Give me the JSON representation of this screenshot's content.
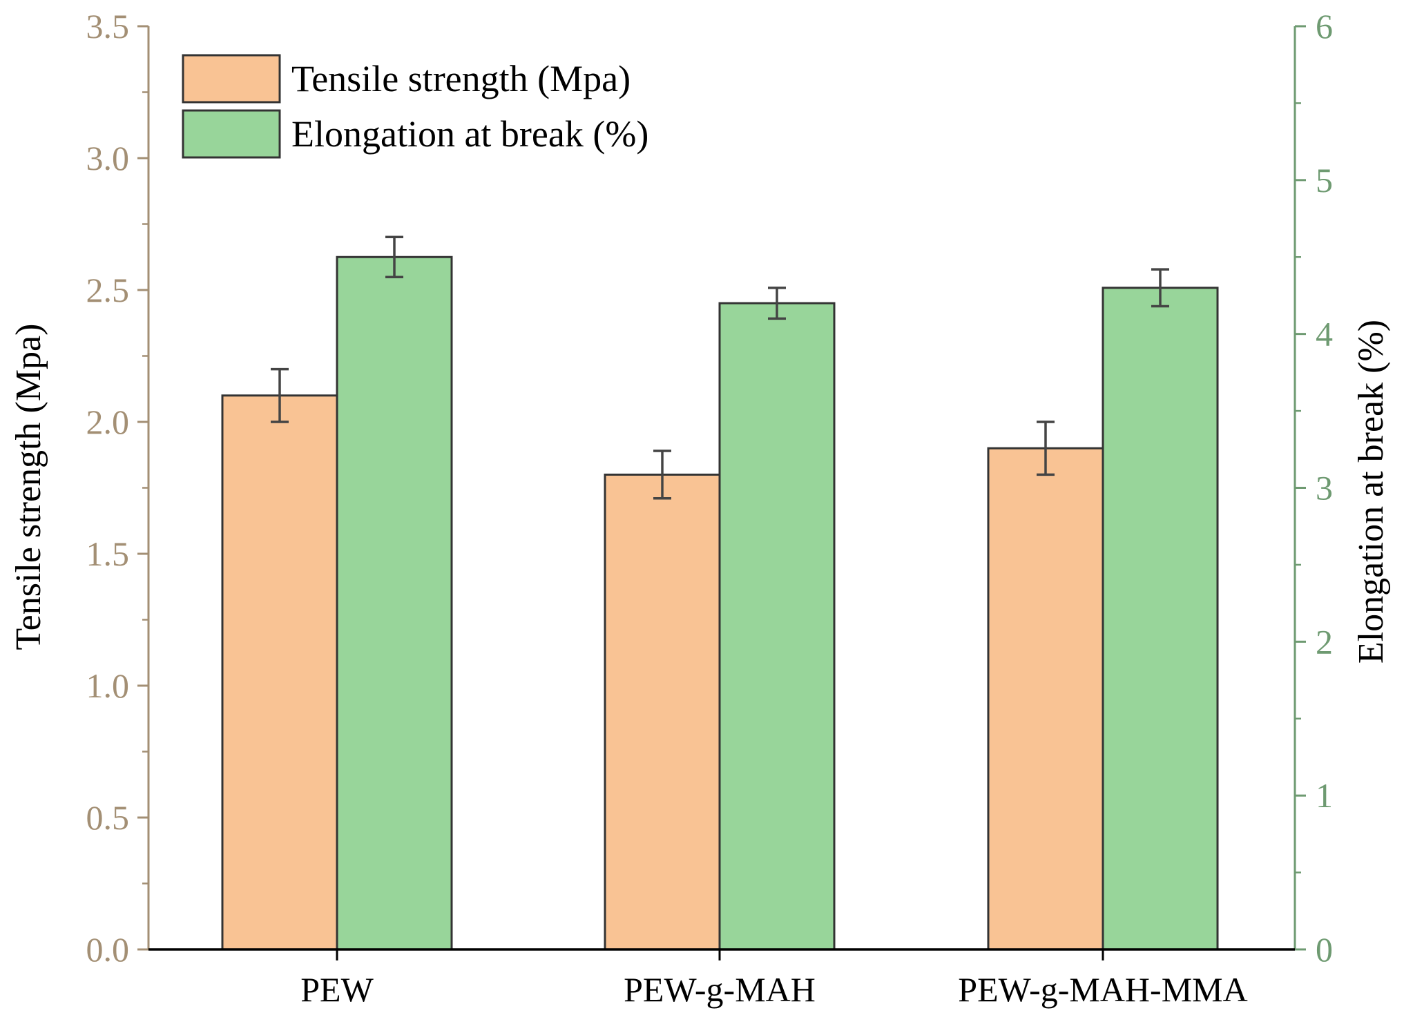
{
  "chart_data": {
    "type": "bar",
    "categories": [
      "PEW",
      "PEW-g-MAH",
      "PEW-g-MAH-MMA"
    ],
    "series": [
      {
        "name": "Tensile strength (Mpa)",
        "axis": "left",
        "values": [
          2.1,
          1.8,
          1.9
        ],
        "errors": [
          0.1,
          0.09,
          0.1
        ],
        "color": "#F9C394"
      },
      {
        "name": "Elongation at break (%)",
        "axis": "right",
        "values": [
          4.5,
          4.2,
          4.3
        ],
        "errors": [
          0.13,
          0.1,
          0.12
        ],
        "color": "#98D59A"
      }
    ],
    "left_axis": {
      "label": "Tensile strength (Mpa)",
      "ylim": [
        0,
        3.5
      ],
      "ticks": [
        "0.0",
        "0.5",
        "1.0",
        "1.5",
        "2.0",
        "2.5",
        "3.0",
        "3.5"
      ],
      "color": "#A38F74"
    },
    "right_axis": {
      "label": "Elongation at break (%)",
      "ylim": [
        0,
        6
      ],
      "ticks": [
        "0",
        "1",
        "2",
        "3",
        "4",
        "5",
        "6"
      ],
      "color": "#6E9A71"
    },
    "legend": {
      "position": "top-left",
      "entries": [
        "Tensile strength (Mpa)",
        "Elongation at break (%)"
      ]
    },
    "grid": false
  }
}
